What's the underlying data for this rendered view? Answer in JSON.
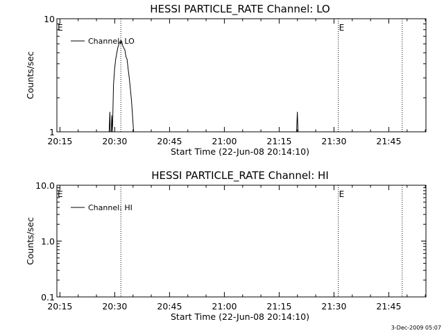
{
  "footer": {
    "timestamp": "3-Dec-2009 05:07"
  },
  "chart_data": [
    {
      "type": "line",
      "title": "HESSI PARTICLE_RATE Channel: LO",
      "xlabel": "Start Time (22-Jun-08 20:14:10)",
      "ylabel": "Counts/sec",
      "x_unit": "minutes after 20:14:10",
      "xlim": [
        0,
        101
      ],
      "x_ticks": [
        {
          "value": 0.83,
          "label": "20:15"
        },
        {
          "value": 15.83,
          "label": "20:30"
        },
        {
          "value": 30.83,
          "label": "20:45"
        },
        {
          "value": 45.83,
          "label": "21:00"
        },
        {
          "value": 60.83,
          "label": "21:15"
        },
        {
          "value": 75.83,
          "label": "21:30"
        },
        {
          "value": 90.83,
          "label": "21:45"
        }
      ],
      "yscale": "log",
      "ylim": [
        1,
        10
      ],
      "y_ticks": [
        {
          "value": 1,
          "label": "1"
        },
        {
          "value": 10,
          "label": "10"
        }
      ],
      "legend": {
        "placement": "top-left",
        "entries": [
          "Channel: LO"
        ]
      },
      "event_lines": [
        {
          "x": 17.5,
          "label": ""
        },
        {
          "x": 77.0,
          "label": "E"
        },
        {
          "x": 94.5,
          "label": ""
        }
      ],
      "start_marker": "E",
      "series": [
        {
          "name": "Channel: LO",
          "points": [
            [
              14.3,
              1
            ],
            [
              14.5,
              1.5
            ],
            [
              14.6,
              1
            ],
            [
              14.9,
              1
            ],
            [
              15.0,
              1.4
            ],
            [
              15.2,
              1
            ],
            [
              15.5,
              2.6
            ],
            [
              15.8,
              3.6
            ],
            [
              16.1,
              4.4
            ],
            [
              16.4,
              5.0
            ],
            [
              16.7,
              5.6
            ],
            [
              17.0,
              6.0
            ],
            [
              17.3,
              6.3
            ],
            [
              17.5,
              6.0
            ],
            [
              17.7,
              6.4
            ],
            [
              18.0,
              5.8
            ],
            [
              18.3,
              5.5
            ],
            [
              18.6,
              5.3
            ],
            [
              18.9,
              4.6
            ],
            [
              19.2,
              4.4
            ],
            [
              19.5,
              3.6
            ],
            [
              19.8,
              3.0
            ],
            [
              20.1,
              2.4
            ],
            [
              20.4,
              1.9
            ],
            [
              20.7,
              1.4
            ],
            [
              21.0,
              1
            ],
            [
              65.6,
              1
            ],
            [
              65.8,
              1.5
            ],
            [
              66.0,
              1
            ]
          ]
        }
      ]
    },
    {
      "type": "line",
      "title": "HESSI PARTICLE_RATE Channel: HI",
      "xlabel": "Start Time (22-Jun-08 20:14:10)",
      "ylabel": "Counts/sec",
      "x_unit": "minutes after 20:14:10",
      "xlim": [
        0,
        101
      ],
      "x_ticks": [
        {
          "value": 0.83,
          "label": "20:15"
        },
        {
          "value": 15.83,
          "label": "20:30"
        },
        {
          "value": 30.83,
          "label": "20:45"
        },
        {
          "value": 45.83,
          "label": "21:00"
        },
        {
          "value": 60.83,
          "label": "21:15"
        },
        {
          "value": 75.83,
          "label": "21:30"
        },
        {
          "value": 90.83,
          "label": "21:45"
        }
      ],
      "yscale": "log",
      "ylim": [
        0.1,
        10
      ],
      "y_ticks": [
        {
          "value": 0.1,
          "label": "0.1"
        },
        {
          "value": 1,
          "label": "1.0"
        },
        {
          "value": 10,
          "label": "10.0"
        }
      ],
      "legend": {
        "placement": "top-left",
        "entries": [
          "Channel: HI"
        ]
      },
      "event_lines": [
        {
          "x": 17.5,
          "label": ""
        },
        {
          "x": 77.0,
          "label": "E"
        },
        {
          "x": 94.5,
          "label": ""
        }
      ],
      "start_marker": "E",
      "series": [
        {
          "name": "Channel: HI",
          "points": []
        }
      ]
    }
  ]
}
